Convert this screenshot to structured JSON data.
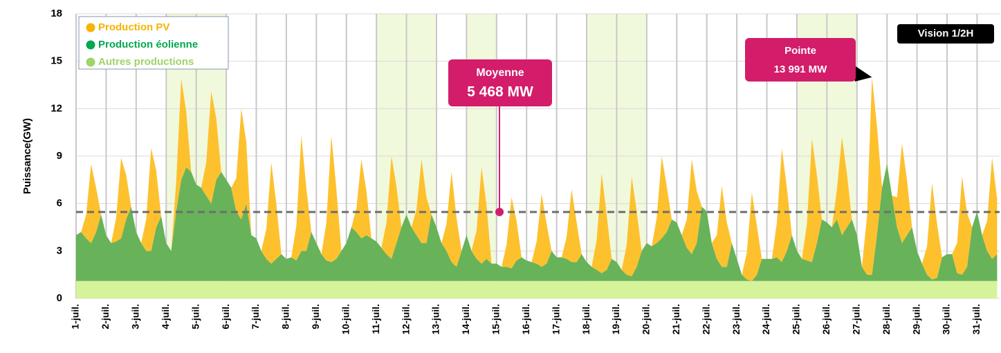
{
  "chart_data": {
    "type": "stacked_area",
    "y_label": "Puissance(GW)",
    "badge": "Vision 1/2H",
    "mean": {
      "title": "Moyenne",
      "value": 5.468,
      "value_label": "5 468 MW"
    },
    "peak": {
      "title": "Pointe",
      "x": 636,
      "value": 13.991,
      "value_label": "13 991 MW"
    },
    "shaded_ranges": [
      [
        72,
        120
      ],
      [
        240,
        288
      ],
      [
        312,
        336
      ],
      [
        408,
        456
      ],
      [
        576,
        624
      ]
    ],
    "xlim": [
      0,
      738
    ],
    "ylim": [
      0,
      18
    ],
    "yticks": [
      0,
      3,
      6,
      9,
      12,
      15,
      18
    ],
    "grid": true,
    "legend": "top-left",
    "xticks": [
      {
        "value": 0,
        "label": "1-juil."
      },
      {
        "value": 24,
        "label": "2-juil."
      },
      {
        "value": 48,
        "label": "3-juil."
      },
      {
        "value": 72,
        "label": "4-juil."
      },
      {
        "value": 96,
        "label": "5-juil."
      },
      {
        "value": 120,
        "label": "6-juil."
      },
      {
        "value": 144,
        "label": "7-juil."
      },
      {
        "value": 168,
        "label": "8-juil."
      },
      {
        "value": 192,
        "label": "9-juil."
      },
      {
        "value": 216,
        "label": "10-juil."
      },
      {
        "value": 240,
        "label": "11-juil."
      },
      {
        "value": 264,
        "label": "12-juil."
      },
      {
        "value": 288,
        "label": "13-juil."
      },
      {
        "value": 312,
        "label": "14-juil."
      },
      {
        "value": 336,
        "label": "15-juil."
      },
      {
        "value": 360,
        "label": "16-juil."
      },
      {
        "value": 384,
        "label": "17-juil."
      },
      {
        "value": 408,
        "label": "18-juil."
      },
      {
        "value": 432,
        "label": "19-juil."
      },
      {
        "value": 456,
        "label": "20-juil."
      },
      {
        "value": 480,
        "label": "21-juil."
      },
      {
        "value": 504,
        "label": "22-juil."
      },
      {
        "value": 528,
        "label": "23-juil."
      },
      {
        "value": 552,
        "label": "24-juil."
      },
      {
        "value": 576,
        "label": "25-juil."
      },
      {
        "value": 600,
        "label": "26-juil."
      },
      {
        "value": 624,
        "label": "27-juil."
      },
      {
        "value": 648,
        "label": "28-juil."
      },
      {
        "value": 672,
        "label": "29-juil."
      },
      {
        "value": 696,
        "label": "30-juil."
      },
      {
        "value": 720,
        "label": "31-juil."
      }
    ],
    "x": [
      0,
      4,
      8,
      12,
      16,
      20,
      24,
      28,
      32,
      36,
      40,
      44,
      48,
      52,
      56,
      60,
      64,
      68,
      72,
      76,
      80,
      84,
      88,
      92,
      96,
      100,
      104,
      108,
      112,
      116,
      120,
      124,
      128,
      132,
      136,
      140,
      144,
      148,
      152,
      156,
      160,
      164,
      168,
      172,
      176,
      180,
      184,
      188,
      192,
      196,
      200,
      204,
      208,
      212,
      216,
      220,
      224,
      228,
      232,
      236,
      240,
      244,
      248,
      252,
      256,
      260,
      264,
      268,
      272,
      276,
      280,
      284,
      288,
      292,
      296,
      300,
      304,
      308,
      312,
      316,
      320,
      324,
      328,
      332,
      336,
      340,
      344,
      348,
      352,
      356,
      360,
      364,
      368,
      372,
      376,
      380,
      384,
      388,
      392,
      396,
      400,
      404,
      408,
      412,
      416,
      420,
      424,
      428,
      432,
      436,
      440,
      444,
      448,
      452,
      456,
      460,
      464,
      468,
      472,
      476,
      480,
      484,
      488,
      492,
      496,
      500,
      504,
      508,
      512,
      516,
      520,
      524,
      528,
      532,
      536,
      540,
      544,
      548,
      552,
      556,
      560,
      564,
      568,
      572,
      576,
      580,
      584,
      588,
      592,
      596,
      600,
      604,
      608,
      612,
      616,
      620,
      624,
      628,
      632,
      636,
      640,
      644,
      648,
      652,
      656,
      660,
      664,
      668,
      672,
      676,
      680,
      684,
      688,
      692,
      696,
      700,
      704,
      708,
      712,
      716,
      720,
      724,
      728,
      732,
      736
    ],
    "series": [
      {
        "name": "Production PV",
        "color": "#fdc12e",
        "legend_color": "#f5b400",
        "values": [
          0,
          0,
          1.5,
          5.0,
          2.8,
          0,
          0,
          0,
          1.5,
          5.1,
          2.8,
          0,
          0,
          0,
          2.0,
          6.5,
          3.6,
          0,
          0,
          0,
          1.9,
          6.4,
          3.5,
          0,
          0,
          0,
          2.1,
          7.1,
          3.9,
          0,
          0,
          0,
          2.1,
          7.0,
          3.9,
          0,
          0,
          0,
          1.9,
          6.4,
          3.5,
          0,
          0,
          0,
          2.2,
          7.3,
          4.0,
          0,
          0,
          0,
          2.4,
          8.0,
          4.4,
          0,
          0,
          0,
          1.5,
          5.0,
          2.8,
          0,
          0,
          0,
          2.0,
          6.5,
          3.6,
          0,
          0,
          0,
          1.6,
          5.3,
          2.9,
          0,
          0,
          0,
          1.7,
          5.7,
          3.1,
          0,
          0,
          0,
          1.8,
          6.1,
          3.4,
          0,
          0,
          0,
          1.4,
          4.5,
          2.5,
          0,
          0,
          0,
          1.4,
          4.6,
          2.5,
          0,
          0,
          0,
          1.4,
          4.6,
          2.5,
          0,
          0,
          0,
          1.9,
          6.3,
          3.5,
          0,
          0,
          0,
          1.9,
          6.3,
          3.5,
          0,
          0,
          0,
          1.6,
          5.2,
          2.9,
          0,
          0,
          0,
          1.8,
          6.0,
          3.3,
          0,
          0,
          0,
          1.5,
          5.1,
          2.8,
          0,
          0,
          0,
          1.7,
          5.6,
          3.1,
          0,
          0,
          0,
          2.2,
          7.2,
          4.0,
          0,
          0,
          0,
          2.3,
          7.8,
          4.3,
          0,
          0,
          0,
          1.9,
          6.2,
          3.4,
          0,
          0,
          0,
          3.7,
          12.491,
          6.9,
          0,
          0,
          0,
          1.9,
          6.3,
          3.5,
          0,
          0,
          0,
          1.8,
          6.1,
          3.4,
          0,
          0,
          0,
          1.9,
          6.2,
          3.4,
          0,
          0,
          0,
          1.9,
          6.4,
          3.5
        ]
      },
      {
        "name": "Production éolienne",
        "color": "#68b25a",
        "legend_color": "#00a84f",
        "values": [
          2.9,
          3.1,
          2.7,
          2.4,
          3.1,
          4.2,
          2.9,
          2.4,
          2.5,
          2.7,
          3.9,
          4.7,
          3.1,
          2.4,
          1.9,
          1.9,
          3.4,
          4.1,
          2.4,
          1.9,
          4.4,
          6.4,
          7.2,
          6.9,
          6.1,
          5.9,
          5.4,
          4.9,
          6.4,
          6.9,
          6.4,
          5.9,
          4.4,
          3.9,
          4.9,
          2.9,
          2.7,
          1.9,
          1.4,
          1.1,
          1.4,
          1.7,
          1.4,
          1.5,
          1.3,
          1.9,
          1.9,
          3.1,
          2.4,
          1.7,
          1.3,
          1.2,
          1.4,
          1.9,
          2.4,
          3.4,
          3.1,
          2.7,
          2.9,
          2.7,
          2.5,
          2.1,
          1.7,
          1.4,
          2.4,
          3.4,
          4.2,
          3.4,
          2.9,
          2.4,
          2.4,
          4.2,
          3.4,
          2.4,
          1.9,
          1.2,
          0.9,
          1.9,
          2.9,
          1.9,
          1.4,
          1.1,
          1.4,
          1.1,
          1.1,
          0.9,
          0.9,
          0.8,
          1.3,
          1.5,
          1.3,
          1.2,
          1.1,
          0.9,
          1.1,
          1.9,
          1.5,
          1.5,
          1.4,
          1.2,
          1.2,
          1.7,
          1.2,
          0.9,
          0.7,
          0.5,
          0.7,
          1.4,
          1.2,
          0.7,
          0.4,
          0.3,
          0.9,
          1.9,
          2.4,
          2.2,
          2.4,
          2.7,
          3.1,
          3.9,
          3.7,
          2.9,
          2.1,
          1.7,
          2.4,
          4.7,
          4.4,
          2.4,
          1.4,
          0.9,
          0.9,
          2.4,
          1.4,
          0.4,
          0.1,
          0.0,
          0.4,
          1.4,
          1.4,
          1.4,
          1.5,
          1.2,
          1.9,
          2.9,
          1.9,
          1.4,
          1.3,
          1.2,
          2.4,
          3.9,
          3.7,
          3.4,
          3.9,
          2.9,
          3.4,
          3.9,
          2.9,
          0.9,
          0.4,
          0.4,
          2.9,
          5.9,
          7.4,
          5.4,
          3.4,
          2.4,
          2.9,
          3.4,
          1.9,
          1.1,
          0.4,
          0.1,
          0.2,
          1.5,
          1.7,
          1.7,
          0.5,
          0.4,
          0.9,
          3.4,
          4.4,
          2.9,
          1.9,
          1.4,
          1.7
        ]
      },
      {
        "name": "Autres productions",
        "color": "#d6f39a",
        "legend_color": "#9fd46a",
        "values": [
          1.1,
          1.1,
          1.1,
          1.1,
          1.1,
          1.1,
          1.1,
          1.1,
          1.1,
          1.1,
          1.1,
          1.1,
          1.1,
          1.1,
          1.1,
          1.1,
          1.1,
          1.1,
          1.1,
          1.1,
          1.1,
          1.1,
          1.1,
          1.1,
          1.1,
          1.1,
          1.1,
          1.1,
          1.1,
          1.1,
          1.1,
          1.1,
          1.1,
          1.1,
          1.1,
          1.1,
          1.1,
          1.1,
          1.1,
          1.1,
          1.1,
          1.1,
          1.1,
          1.1,
          1.1,
          1.1,
          1.1,
          1.1,
          1.1,
          1.1,
          1.1,
          1.1,
          1.1,
          1.1,
          1.1,
          1.1,
          1.1,
          1.1,
          1.1,
          1.1,
          1.1,
          1.1,
          1.1,
          1.1,
          1.1,
          1.1,
          1.1,
          1.1,
          1.1,
          1.1,
          1.1,
          1.1,
          1.1,
          1.1,
          1.1,
          1.1,
          1.1,
          1.1,
          1.1,
          1.1,
          1.1,
          1.1,
          1.1,
          1.1,
          1.1,
          1.1,
          1.1,
          1.1,
          1.1,
          1.1,
          1.1,
          1.1,
          1.1,
          1.1,
          1.1,
          1.1,
          1.1,
          1.1,
          1.1,
          1.1,
          1.1,
          1.1,
          1.1,
          1.1,
          1.1,
          1.1,
          1.1,
          1.1,
          1.1,
          1.1,
          1.1,
          1.1,
          1.1,
          1.1,
          1.1,
          1.1,
          1.1,
          1.1,
          1.1,
          1.1,
          1.1,
          1.1,
          1.1,
          1.1,
          1.1,
          1.1,
          1.1,
          1.1,
          1.1,
          1.1,
          1.1,
          1.1,
          1.1,
          1.1,
          1.1,
          1.1,
          1.1,
          1.1,
          1.1,
          1.1,
          1.1,
          1.1,
          1.1,
          1.1,
          1.1,
          1.1,
          1.1,
          1.1,
          1.1,
          1.1,
          1.1,
          1.1,
          1.1,
          1.1,
          1.1,
          1.1,
          1.1,
          1.1,
          1.1,
          1.1,
          1.1,
          1.1,
          1.1,
          1.1,
          1.1,
          1.1,
          1.1,
          1.1,
          1.1,
          1.1,
          1.1,
          1.1,
          1.1,
          1.1,
          1.1,
          1.1,
          1.1,
          1.1,
          1.1,
          1.1,
          1.1,
          1.1,
          1.1,
          1.1,
          1.1
        ]
      }
    ]
  }
}
